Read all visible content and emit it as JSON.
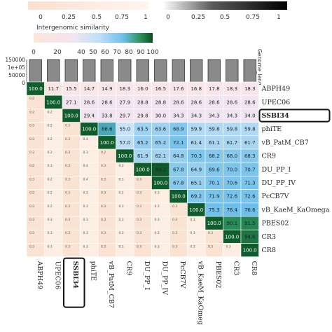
{
  "chart_data": {
    "type": "heatmap",
    "genomes": [
      "ABPH49",
      "UPEC06",
      "SSBI34",
      "phiTE",
      "vB_PatM_CB7",
      "CR9",
      "DU_PP_I",
      "DU_PP_IV",
      "PcCB7V",
      "vB_KaeM_KaOmega",
      "PBES02",
      "CR3",
      "CR8"
    ],
    "col_labels": [
      "ABPH49",
      "UPEC06",
      "SSBI34",
      "phiTE",
      "vB_PatM_CB7",
      "CR9",
      "DU_PP_I",
      "DU_PP_IV",
      "PcCB7V",
      "vB_KaeM_KaOmeg",
      "PBES02",
      "CR3",
      "CR8"
    ],
    "highlight": "SSBI34",
    "upper_values": [
      [
        100.0,
        11.7,
        15.5,
        14.7,
        14.9,
        18.3,
        16.0,
        16.5,
        17.6,
        16.8,
        17.8,
        18.3,
        18.3
      ],
      [
        null,
        100.0,
        27.1,
        28.6,
        28.6,
        27.9,
        28.8,
        28.8,
        28.6,
        28.6,
        28.6,
        28.6,
        28.6
      ],
      [
        null,
        null,
        100.0,
        29.4,
        33.8,
        29.7,
        29.8,
        30.0,
        34.3,
        34.3,
        34.3,
        34.3,
        34.0
      ],
      [
        null,
        null,
        null,
        100.0,
        86.6,
        55.0,
        63.5,
        63.6,
        68.9,
        59.9,
        59.8,
        59.8,
        59.8
      ],
      [
        null,
        null,
        null,
        null,
        100.0,
        57.0,
        65.2,
        65.2,
        72.1,
        61.4,
        61.1,
        61.7,
        61.7
      ],
      [
        null,
        null,
        null,
        null,
        null,
        100.0,
        61.9,
        62.1,
        64.8,
        70.3,
        68.2,
        68.0,
        68.3
      ],
      [
        null,
        null,
        null,
        null,
        null,
        null,
        100.0,
        99.2,
        67.8,
        64.9,
        69.6,
        70.0,
        70.7
      ],
      [
        null,
        null,
        null,
        null,
        null,
        null,
        null,
        100.0,
        67.8,
        65.1,
        70.1,
        70.6,
        71.3
      ],
      [
        null,
        null,
        null,
        null,
        null,
        null,
        null,
        null,
        100.0,
        69.2,
        71.9,
        72.6,
        72.6
      ],
      [
        null,
        null,
        null,
        null,
        null,
        null,
        null,
        null,
        null,
        100.0,
        75.3,
        76.4,
        76.6
      ],
      [
        null,
        null,
        null,
        null,
        null,
        null,
        null,
        null,
        null,
        null,
        100.0,
        90.1,
        91.5
      ],
      [
        null,
        null,
        null,
        null,
        null,
        null,
        null,
        null,
        null,
        null,
        null,
        100.0,
        94.6
      ],
      [
        null,
        null,
        null,
        null,
        null,
        null,
        null,
        null,
        null,
        null,
        null,
        null,
        100.0
      ]
    ],
    "lower_values": [
      [],
      [
        0.2
      ],
      [
        0.2,
        0.2
      ],
      [
        0.3,
        0.2,
        0.3
      ],
      [
        0.3,
        0.2,
        0.3,
        0.4
      ],
      [
        0.2,
        0.2,
        0.3,
        0.3,
        0.2
      ],
      [
        0.2,
        0.3,
        0.3,
        0.4,
        0.3,
        0.3
      ],
      [
        0.3,
        0.2,
        0.3,
        0.4,
        0.3,
        0.3,
        0.3
      ],
      [
        0.2,
        0.2,
        0.3,
        0.3,
        0.3,
        0.2,
        0.3,
        0.3
      ],
      [
        0.3,
        0.2,
        0.3,
        0.3,
        0.3,
        0.3,
        0.3,
        0.3,
        0.3
      ],
      [
        0.3,
        0.3,
        0.3,
        0.3,
        0.3,
        0.3,
        0.3,
        0.3,
        0.3,
        0.3
      ],
      [
        0.3,
        0.3,
        0.3,
        0.3,
        0.3,
        0.3,
        0.3,
        0.3,
        0.3,
        0.3,
        0.3
      ],
      [
        0.3,
        0.3,
        0.3,
        0.3,
        0.3,
        0.3,
        0.3,
        0.3,
        0.3,
        0.3,
        0.3,
        0.3
      ]
    ],
    "genome_lengths": [
      150000,
      150000,
      150000,
      150000,
      150000,
      150000,
      150000,
      150000,
      150000,
      150000,
      150000,
      150000,
      150000
    ],
    "length_axis": {
      "label": "Genome_leng",
      "ticks": [
        "150000",
        "1e+05",
        "50000",
        "0"
      ],
      "range": [
        0,
        150000
      ]
    },
    "legends": {
      "top_left_ticks": [
        "0",
        "0.25",
        "0.5",
        "0.75",
        "1"
      ],
      "top_right_ticks": [
        "0",
        "0.25",
        "0.5",
        "0.75",
        "1"
      ],
      "similarity_title": "Intergenomic similarity",
      "similarity_ticks": [
        "0",
        "20",
        "40",
        "50",
        "60",
        "70",
        "80",
        "90",
        "100"
      ],
      "similarity_range": [
        0,
        100
      ]
    },
    "colors": {
      "low": "#fde7d9",
      "mid": "#f2e6f3",
      "blue": "#7fc6ec",
      "high": "#1c7a3c",
      "top": "#0b4d22",
      "bar": "#8a8a8a"
    }
  }
}
